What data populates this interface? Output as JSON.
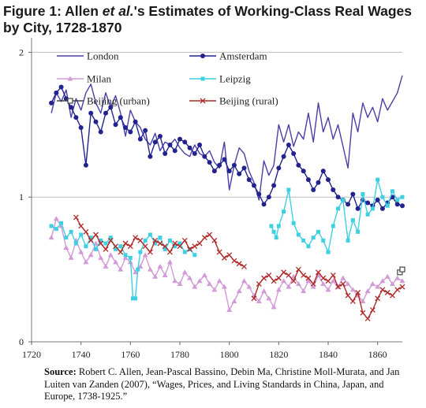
{
  "title": {
    "prefix": "Figure 1: Allen ",
    "italic": "et al.",
    "suffix": "'s Estimates of Working-Class Real Wages by City, 1728-1870"
  },
  "source": {
    "label": "Source:",
    "text": "Robert C. Allen, Jean-Pascal Bassino, Debin Ma, Christine Moll-Murata, and Jan Luiten van Zanden (2007), “Wages, Prices, and Living Standards in China, Japan, and Europe, 1738-1925.”"
  },
  "chart_data": {
    "type": "line",
    "title": "",
    "xlabel": "",
    "ylabel": "",
    "xlim": [
      1720,
      1870
    ],
    "ylim": [
      0,
      2.1
    ],
    "grid": "horizontal",
    "legend_position": "top-left",
    "x_ticks": [
      1720,
      1740,
      1760,
      1780,
      1800,
      1820,
      1840,
      1860
    ],
    "y_ticks": [
      0,
      1,
      2
    ],
    "series": [
      {
        "name": "London",
        "color": "#4b3fa8",
        "marker": "none",
        "x": [
          1728,
          1730,
          1732,
          1734,
          1736,
          1738,
          1740,
          1742,
          1744,
          1746,
          1748,
          1750,
          1752,
          1754,
          1756,
          1758,
          1760,
          1762,
          1764,
          1766,
          1768,
          1770,
          1772,
          1774,
          1776,
          1778,
          1780,
          1782,
          1784,
          1786,
          1788,
          1790,
          1792,
          1794,
          1796,
          1798,
          1800,
          1802,
          1804,
          1806,
          1808,
          1810,
          1812,
          1814,
          1816,
          1818,
          1820,
          1822,
          1824,
          1826,
          1828,
          1830,
          1832,
          1834,
          1836,
          1838,
          1840,
          1842,
          1844,
          1846,
          1848,
          1850,
          1852,
          1854,
          1856,
          1858,
          1860,
          1862,
          1864,
          1866,
          1868,
          1870
        ],
        "y": [
          1.58,
          1.72,
          1.66,
          1.74,
          1.55,
          1.68,
          1.6,
          1.72,
          1.78,
          1.65,
          1.58,
          1.72,
          1.62,
          1.7,
          1.58,
          1.42,
          1.6,
          1.52,
          1.48,
          1.4,
          1.36,
          1.44,
          1.32,
          1.38,
          1.36,
          1.4,
          1.34,
          1.3,
          1.28,
          1.36,
          1.3,
          1.28,
          1.32,
          1.24,
          1.2,
          1.38,
          1.05,
          1.22,
          1.34,
          1.3,
          1.18,
          1.1,
          0.98,
          1.25,
          1.15,
          1.22,
          1.5,
          1.38,
          1.5,
          1.35,
          1.45,
          1.4,
          1.58,
          1.38,
          1.65,
          1.45,
          1.55,
          1.4,
          1.5,
          1.35,
          1.2,
          1.58,
          1.45,
          1.65,
          1.55,
          1.62,
          1.52,
          1.68,
          1.6,
          1.66,
          1.72,
          1.84
        ]
      },
      {
        "name": "Amsterdam",
        "color": "#23238f",
        "marker": "circle",
        "x": [
          1728,
          1730,
          1732,
          1734,
          1736,
          1738,
          1740,
          1742,
          1744,
          1746,
          1748,
          1750,
          1752,
          1754,
          1756,
          1758,
          1760,
          1762,
          1764,
          1766,
          1768,
          1770,
          1772,
          1774,
          1776,
          1778,
          1780,
          1782,
          1784,
          1786,
          1788,
          1790,
          1792,
          1794,
          1796,
          1798,
          1800,
          1802,
          1804,
          1806,
          1808,
          1810,
          1812,
          1814,
          1816,
          1818,
          1820,
          1822,
          1824,
          1826,
          1828,
          1830,
          1832,
          1834,
          1836,
          1838,
          1840,
          1842,
          1844,
          1846,
          1848,
          1850,
          1852,
          1854,
          1856,
          1858,
          1860,
          1862,
          1864,
          1866,
          1868,
          1870
        ],
        "y": [
          1.65,
          1.72,
          1.76,
          1.68,
          1.62,
          1.55,
          1.48,
          1.22,
          1.58,
          1.52,
          1.45,
          1.58,
          1.62,
          1.5,
          1.55,
          1.48,
          1.45,
          1.52,
          1.4,
          1.46,
          1.28,
          1.38,
          1.42,
          1.3,
          1.36,
          1.32,
          1.4,
          1.38,
          1.34,
          1.3,
          1.36,
          1.28,
          1.24,
          1.18,
          1.22,
          1.26,
          1.18,
          1.22,
          1.16,
          1.2,
          1.12,
          1.08,
          1.02,
          0.95,
          1.0,
          1.08,
          1.2,
          1.28,
          1.36,
          1.3,
          1.22,
          1.18,
          1.12,
          1.05,
          1.1,
          1.18,
          1.12,
          1.05,
          1.0,
          0.98,
          0.95,
          1.02,
          0.92,
          0.98,
          0.96,
          0.94,
          0.98,
          0.92,
          0.96,
          1.0,
          0.95,
          0.94
        ]
      },
      {
        "name": "Milan",
        "color": "#d29ad6",
        "marker": "triangle",
        "x": [
          1728,
          1730,
          1732,
          1734,
          1736,
          1738,
          1740,
          1742,
          1744,
          1746,
          1748,
          1750,
          1752,
          1754,
          1756,
          1758,
          1760,
          1762,
          1764,
          1766,
          1768,
          1770,
          1772,
          1774,
          1776,
          1778,
          1780,
          1782,
          1784,
          1786,
          1788,
          1790,
          1792,
          1794,
          1796,
          1798,
          1800,
          1802,
          1804,
          1806,
          1808,
          1810,
          1812,
          1814,
          1816,
          1818,
          1820,
          1822,
          1824,
          1826,
          1828,
          1830,
          1832,
          1834,
          1836,
          1838,
          1840,
          1842,
          1844,
          1846,
          1848,
          1850,
          1852,
          1854,
          1856,
          1858,
          1860,
          1862,
          1864,
          1866,
          1868,
          1870
        ],
        "y": [
          0.72,
          0.85,
          0.8,
          0.65,
          0.58,
          0.7,
          0.62,
          0.55,
          0.6,
          0.68,
          0.58,
          0.52,
          0.6,
          0.55,
          0.5,
          0.58,
          0.55,
          0.48,
          0.52,
          0.6,
          0.5,
          0.45,
          0.52,
          0.46,
          0.55,
          0.42,
          0.4,
          0.48,
          0.44,
          0.38,
          0.42,
          0.46,
          0.4,
          0.36,
          0.42,
          0.38,
          0.22,
          0.28,
          0.35,
          0.42,
          0.38,
          0.32,
          0.28,
          0.35,
          0.3,
          0.24,
          0.36,
          0.42,
          0.38,
          0.45,
          0.4,
          0.35,
          0.42,
          0.38,
          0.46,
          0.4,
          0.36,
          0.42,
          0.38,
          0.44,
          0.4,
          0.36,
          0.32,
          0.28,
          0.35,
          0.4,
          0.38,
          0.42,
          0.45,
          0.4,
          0.44,
          0.42
        ]
      },
      {
        "name": "Leipzig",
        "color": "#3dd0e3",
        "marker": "square",
        "x": [
          1728,
          1730,
          1732,
          1734,
          1736,
          1738,
          1740,
          1742,
          1744,
          1746,
          1748,
          1750,
          1752,
          1754,
          1756,
          1758,
          1760,
          1761,
          1762,
          1763,
          1764,
          1766,
          1768,
          1770,
          1772,
          1774,
          1776,
          1778,
          1780,
          1782,
          1784,
          1786,
          null,
          1817,
          1818,
          1819,
          1820,
          1822,
          1824,
          1826,
          1828,
          1830,
          1832,
          1834,
          1836,
          1838,
          1840,
          1842,
          1844,
          1846,
          1848,
          1850,
          1852,
          1854,
          1856,
          1858,
          1860,
          1862,
          1864,
          1866,
          1868,
          1870
        ],
        "y": [
          0.8,
          0.78,
          0.82,
          0.72,
          0.76,
          0.68,
          0.74,
          0.66,
          0.72,
          0.64,
          0.7,
          0.68,
          0.72,
          0.64,
          0.66,
          0.6,
          0.58,
          0.3,
          0.3,
          0.5,
          0.62,
          0.7,
          0.74,
          0.68,
          0.72,
          0.64,
          0.7,
          0.66,
          0.68,
          0.62,
          0.64,
          0.6,
          null,
          0.8,
          0.76,
          0.72,
          0.8,
          0.9,
          1.05,
          0.82,
          0.74,
          0.7,
          0.66,
          0.72,
          0.76,
          0.7,
          0.62,
          0.8,
          0.92,
          0.98,
          0.7,
          0.84,
          0.76,
          1.02,
          0.88,
          0.92,
          1.12,
          1.0,
          0.94,
          1.04,
          0.98,
          1.0
        ]
      },
      {
        "name": "Beijing (urban)",
        "color": "#444444",
        "marker": "open-square",
        "x": [
          1869,
          1870
        ],
        "y": [
          0.48,
          0.5
        ]
      },
      {
        "name": "Beijing (rural)",
        "color": "#b02a2a",
        "marker": "x",
        "x": [
          1738,
          1740,
          1742,
          1744,
          1746,
          1748,
          1750,
          1752,
          1754,
          1756,
          1758,
          1760,
          1762,
          1764,
          1766,
          1768,
          1770,
          1772,
          1774,
          1776,
          1778,
          1780,
          1782,
          1784,
          1786,
          1788,
          1790,
          1792,
          1794,
          1796,
          1798,
          1800,
          1802,
          1804,
          1806,
          null,
          1810,
          1812,
          1814,
          1816,
          1818,
          1820,
          1822,
          1824,
          1826,
          1828,
          1830,
          1832,
          1834,
          1836,
          1838,
          1840,
          1842,
          1844,
          1846,
          1848,
          1850,
          1852,
          1854,
          1856,
          1858,
          1860,
          1862,
          1864,
          1866,
          1868,
          1870
        ],
        "y": [
          0.86,
          0.8,
          0.76,
          0.7,
          0.74,
          0.68,
          0.64,
          0.7,
          0.66,
          0.62,
          0.68,
          0.66,
          0.72,
          0.7,
          0.66,
          0.62,
          0.7,
          0.68,
          0.66,
          0.62,
          0.68,
          0.66,
          0.7,
          0.64,
          0.66,
          0.68,
          0.72,
          0.74,
          0.7,
          0.62,
          0.58,
          0.6,
          0.56,
          0.54,
          0.52,
          null,
          0.3,
          0.4,
          0.44,
          0.46,
          0.42,
          0.44,
          0.48,
          0.46,
          0.42,
          0.5,
          0.46,
          0.44,
          0.4,
          0.48,
          0.44,
          0.42,
          0.46,
          0.38,
          0.4,
          0.32,
          0.28,
          0.34,
          0.2,
          0.16,
          0.22,
          0.3,
          0.36,
          0.34,
          0.32,
          0.36,
          0.38
        ]
      }
    ]
  }
}
